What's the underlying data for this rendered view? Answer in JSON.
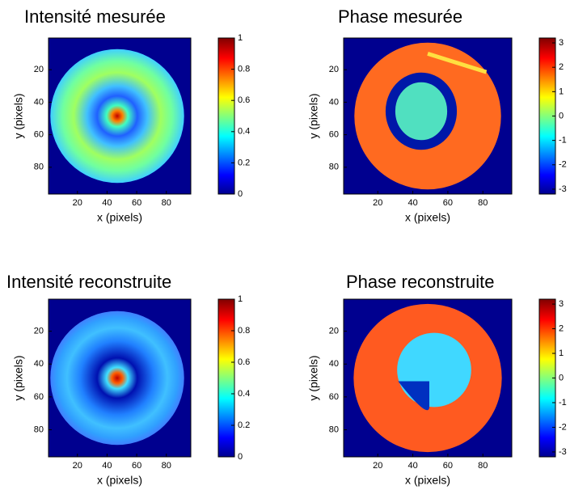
{
  "chart_data": [
    {
      "type": "heatmap",
      "title": "Intensité mesurée",
      "xlabel": "x (pixels)",
      "ylabel": "y (pixels)",
      "xlim": [
        0.5,
        96.5
      ],
      "xticks": [
        20,
        40,
        60,
        80
      ],
      "ylim": [
        96.5,
        0.5
      ],
      "yticks": [
        20,
        40,
        60,
        80
      ],
      "colorbar": {
        "lim": [
          0,
          1
        ],
        "ticks": [
          0,
          0.2,
          0.4,
          0.6,
          0.8,
          1
        ]
      }
    },
    {
      "type": "heatmap",
      "title": "Phase mesurée",
      "xlabel": "x (pixels)",
      "ylabel": "y (pixels)",
      "xlim": [
        0.5,
        96.5
      ],
      "xticks": [
        20,
        40,
        60,
        80
      ],
      "ylim": [
        96.5,
        0.5
      ],
      "yticks": [
        20,
        40,
        60,
        80
      ],
      "colorbar": {
        "lim": [
          -3.2,
          3.2
        ],
        "ticks": [
          -3,
          -2,
          -1,
          0,
          1,
          2,
          3
        ]
      }
    },
    {
      "type": "heatmap",
      "title": "Intensité reconstruite",
      "xlabel": "x (pixels)",
      "ylabel": "y (pixels)",
      "xlim": [
        0.5,
        96.5
      ],
      "xticks": [
        20,
        40,
        60,
        80
      ],
      "ylim": [
        96.5,
        0.5
      ],
      "yticks": [
        20,
        40,
        60,
        80
      ],
      "colorbar": {
        "lim": [
          0,
          1
        ],
        "ticks": [
          0,
          0.2,
          0.4,
          0.6,
          0.8,
          1
        ]
      }
    },
    {
      "type": "heatmap",
      "title": "Phase reconstruite",
      "xlabel": "x (pixels)",
      "ylabel": "y (pixels)",
      "xlim": [
        0.5,
        96.5
      ],
      "xticks": [
        20,
        40,
        60,
        80
      ],
      "ylim": [
        96.5,
        0.5
      ],
      "yticks": [
        20,
        40,
        60,
        80
      ],
      "colorbar": {
        "lim": [
          -3.2,
          3.2
        ],
        "ticks": [
          -3,
          -2,
          -1,
          0,
          1,
          2,
          3
        ]
      }
    }
  ]
}
